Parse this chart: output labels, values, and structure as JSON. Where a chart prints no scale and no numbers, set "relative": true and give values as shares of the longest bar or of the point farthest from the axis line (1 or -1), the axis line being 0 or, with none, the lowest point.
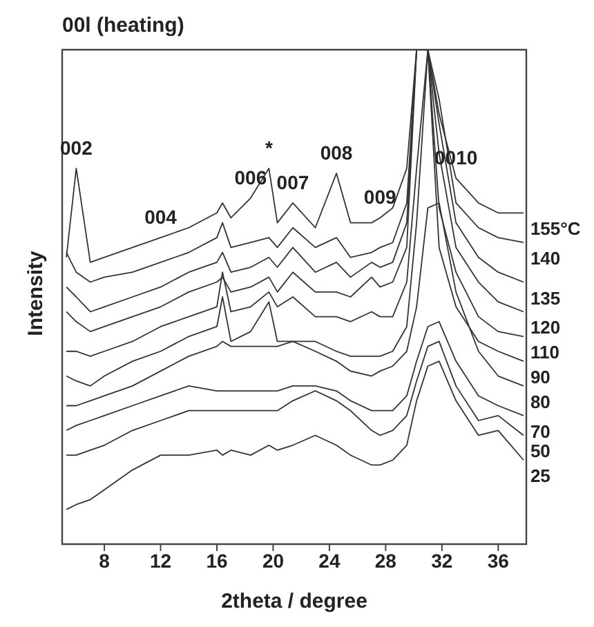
{
  "chart_data": {
    "type": "line",
    "title": "00l (heating)",
    "xlabel": "2theta / degree",
    "ylabel": "Intensity",
    "relative": true,
    "legend": false,
    "grid": false,
    "marker": "none",
    "line_style": "solid",
    "xlim": [
      5,
      38
    ],
    "xticks": [
      8,
      12,
      16,
      20,
      24,
      28,
      32,
      36
    ],
    "x": [
      5.3,
      6,
      7,
      8,
      10,
      12,
      14,
      16,
      16.4,
      17,
      18.4,
      19.7,
      20.3,
      21.4,
      23,
      24.5,
      25.5,
      27,
      27.6,
      28.5,
      29.5,
      30.2,
      31,
      31.8,
      33,
      34.6,
      36,
      37.8
    ],
    "series": [
      {
        "name": "155°C",
        "color": "#333333",
        "values": [
          0.58,
          0.76,
          0.57,
          0.58,
          0.6,
          0.62,
          0.64,
          0.67,
          0.69,
          0.66,
          0.7,
          0.76,
          0.65,
          0.69,
          0.64,
          0.75,
          0.65,
          0.65,
          0.66,
          0.68,
          0.76,
          1,
          1,
          0.87,
          0.74,
          0.69,
          0.67,
          0.67
        ]
      },
      {
        "name": "140",
        "color": "#333333",
        "values": [
          0.59,
          0.55,
          0.53,
          0.54,
          0.55,
          0.57,
          0.59,
          0.62,
          0.65,
          0.6,
          0.61,
          0.62,
          0.6,
          0.64,
          0.6,
          0.62,
          0.58,
          0.59,
          0.6,
          0.61,
          0.69,
          1,
          1,
          0.9,
          0.69,
          0.64,
          0.62,
          0.61
        ]
      },
      {
        "name": "135",
        "color": "#333333",
        "values": [
          0.52,
          0.5,
          0.47,
          0.48,
          0.5,
          0.52,
          0.55,
          0.57,
          0.59,
          0.55,
          0.56,
          0.58,
          0.56,
          0.6,
          0.55,
          0.57,
          0.54,
          0.57,
          0.56,
          0.57,
          0.65,
          1,
          1,
          0.85,
          0.65,
          0.58,
          0.55,
          0.53
        ]
      },
      {
        "name": "120",
        "color": "#333333",
        "values": [
          0.47,
          0.45,
          0.43,
          0.44,
          0.46,
          0.48,
          0.51,
          0.53,
          0.54,
          0.51,
          0.52,
          0.54,
          0.51,
          0.55,
          0.51,
          0.51,
          0.5,
          0.54,
          0.52,
          0.53,
          0.6,
          1,
          1,
          0.79,
          0.6,
          0.53,
          0.49,
          0.47
        ]
      },
      {
        "name": "110",
        "color": "#333333",
        "values": [
          0.39,
          0.39,
          0.38,
          0.39,
          0.41,
          0.44,
          0.46,
          0.48,
          0.55,
          0.47,
          0.48,
          0.51,
          0.48,
          0.5,
          0.46,
          0.46,
          0.45,
          0.47,
          0.46,
          0.46,
          0.53,
          0.76,
          1,
          0.68,
          0.55,
          0.46,
          0.43,
          0.42
        ]
      },
      {
        "name": "90",
        "color": "#333333",
        "values": [
          0.34,
          0.33,
          0.32,
          0.34,
          0.37,
          0.39,
          0.42,
          0.44,
          0.5,
          0.41,
          0.43,
          0.49,
          0.41,
          0.41,
          0.41,
          0.39,
          0.38,
          0.38,
          0.38,
          0.39,
          0.44,
          0.65,
          1,
          0.6,
          0.48,
          0.41,
          0.39,
          0.37
        ]
      },
      {
        "name": "80",
        "color": "#333333",
        "values": [
          0.28,
          0.28,
          0.29,
          0.3,
          0.32,
          0.35,
          0.38,
          0.4,
          0.41,
          0.4,
          0.4,
          0.4,
          0.4,
          0.41,
          0.39,
          0.37,
          0.35,
          0.34,
          0.35,
          0.36,
          0.39,
          0.48,
          0.68,
          0.69,
          0.51,
          0.39,
          0.34,
          0.32
        ]
      },
      {
        "name": "70",
        "color": "#333333",
        "values": [
          0.23,
          0.24,
          0.25,
          0.26,
          0.28,
          0.3,
          0.32,
          0.31,
          0.31,
          0.31,
          0.31,
          0.31,
          0.31,
          0.32,
          0.32,
          0.31,
          0.29,
          0.27,
          0.27,
          0.27,
          0.3,
          0.37,
          0.44,
          0.45,
          0.37,
          0.3,
          0.28,
          0.26
        ]
      },
      {
        "name": "50",
        "color": "#333333",
        "values": [
          0.18,
          0.18,
          0.19,
          0.2,
          0.23,
          0.25,
          0.27,
          0.27,
          0.27,
          0.27,
          0.27,
          0.27,
          0.27,
          0.29,
          0.31,
          0.29,
          0.27,
          0.23,
          0.22,
          0.23,
          0.26,
          0.33,
          0.4,
          0.41,
          0.32,
          0.25,
          0.26,
          0.22
        ]
      },
      {
        "name": "25",
        "color": "#333333",
        "values": [
          0.07,
          0.08,
          0.09,
          0.11,
          0.15,
          0.18,
          0.18,
          0.19,
          0.18,
          0.19,
          0.18,
          0.2,
          0.19,
          0.2,
          0.22,
          0.2,
          0.18,
          0.16,
          0.16,
          0.17,
          0.2,
          0.29,
          0.36,
          0.37,
          0.29,
          0.22,
          0.23,
          0.17
        ]
      }
    ],
    "annotations": [
      {
        "text": "002",
        "x": 6,
        "y": 0.76
      },
      {
        "text": "004",
        "x": 12,
        "y": 0.62
      },
      {
        "text": "006",
        "x": 18.4,
        "y": 0.7
      },
      {
        "text": "*",
        "x": 19.7,
        "y": 0.76
      },
      {
        "text": "007",
        "x": 21.4,
        "y": 0.69
      },
      {
        "text": "008",
        "x": 24.5,
        "y": 0.75
      },
      {
        "text": "009",
        "x": 27.6,
        "y": 0.66
      },
      {
        "text": "0010",
        "x": 33,
        "y": 0.74
      }
    ]
  }
}
